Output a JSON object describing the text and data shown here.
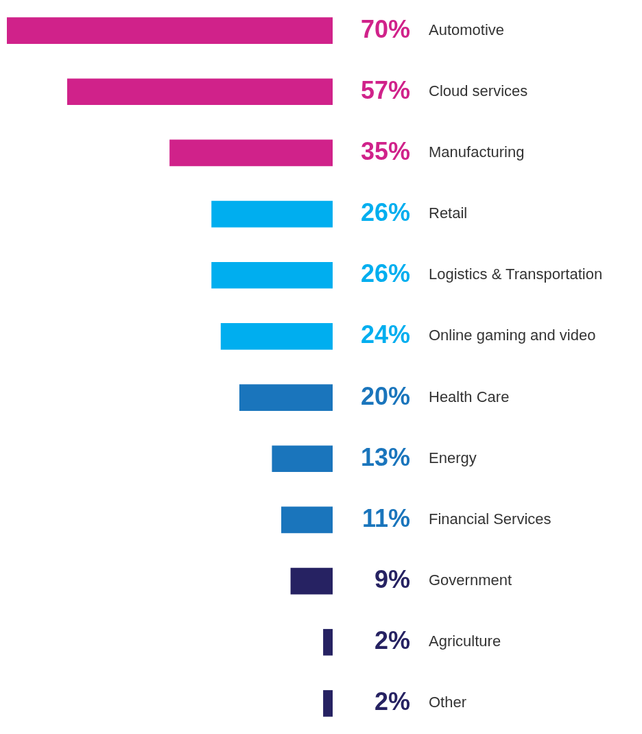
{
  "chart_data": {
    "type": "bar",
    "orientation": "horizontal",
    "categories": [
      "Automotive",
      "Cloud services",
      "Manufacturing",
      "Retail",
      "Logistics & Transportation",
      "Online gaming and video",
      "Health Care",
      "Energy",
      "Financial Services",
      "Government",
      "Agriculture",
      "Other"
    ],
    "values": [
      70,
      57,
      35,
      26,
      26,
      24,
      20,
      13,
      11,
      9,
      2,
      2
    ],
    "value_labels": [
      "70%",
      "57%",
      "35%",
      "26%",
      "26%",
      "24%",
      "20%",
      "13%",
      "11%",
      "9%",
      "2%",
      "2%"
    ],
    "colors": [
      "#d0228a",
      "#d0228a",
      "#d0228a",
      "#00aeef",
      "#00aeef",
      "#00aeef",
      "#1a75bc",
      "#1a75bc",
      "#1a75bc",
      "#262262",
      "#262262",
      "#262262"
    ],
    "xlim": [
      70,
      0
    ],
    "legend": false
  }
}
